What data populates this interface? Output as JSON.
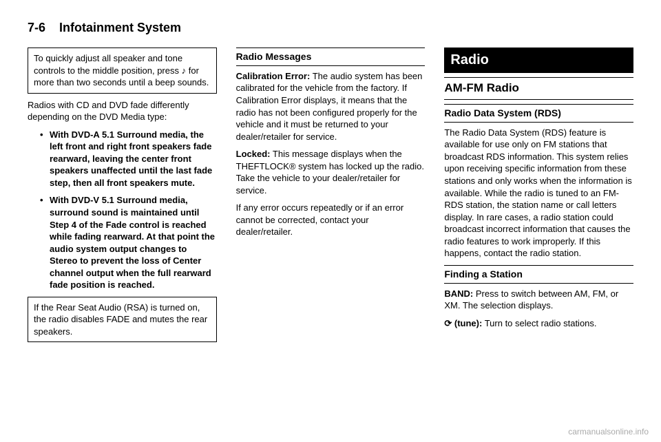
{
  "header": {
    "page_num": "7-6",
    "section": "Infotainment System"
  },
  "col1": {
    "box1": {
      "p1a": "To quickly adjust all speaker and tone controls to the middle position, press ",
      "icon_note": "♪",
      "p1b": " for more than two seconds until a beep sounds."
    },
    "p2": "Radios with CD and DVD fade differently depending on the DVD Media type:",
    "bullets": [
      "With DVD-A 5.1 Surround media, the left front and right front speakers fade rearward, leaving the center front speakers unaffected until the last fade step, then all front speakers mute.",
      "With DVD-V 5.1 Surround media, surround sound is maintained until Step 4 of the Fade control is reached while fading rearward. At that point the audio system output changes to Stereo to prevent the loss of Center channel output when the full rearward fade position is reached."
    ],
    "box2": "If the Rear Seat Audio (RSA) is turned on, the radio disables FADE and mutes the rear speakers."
  },
  "col2": {
    "head": "Radio Messages",
    "p1_term": "Calibration Error:",
    "p1_body": "The audio system has been calibrated for the vehicle from the factory. If Calibration Error displays, it means that the radio has not been configured properly for the vehicle and it must be returned to your dealer/retailer for service.",
    "p2_term": "Locked:",
    "p2_body": "This message displays when the THEFTLOCK® system has locked up the radio. Take the vehicle to your dealer/retailer for service.",
    "p3": "If any error occurs repeatedly or if an error cannot be corrected, contact your dealer/retailer."
  },
  "col3": {
    "head_large": "Radio",
    "head_med": "AM-FM Radio",
    "head_small1": "Radio Data System (RDS)",
    "rds_body": "The Radio Data System (RDS) feature is available for use only on FM stations that broadcast RDS information. This system relies upon receiving specific information from these stations and only works when the information is available. While the radio is tuned to an FM-RDS station, the station name or call letters display. In rare cases, a radio station could broadcast incorrect information that causes the radio features to work improperly. If this happens, contact the radio station.",
    "head_small2": "Finding a Station",
    "band_term": "BAND:",
    "band_body": "Press to switch between AM, FM, or XM. The selection displays.",
    "tune_icon": "⟳",
    "tune_term": "(tune):",
    "tune_body": "Turn to select radio stations."
  },
  "watermark": "carmanualsonline.info"
}
